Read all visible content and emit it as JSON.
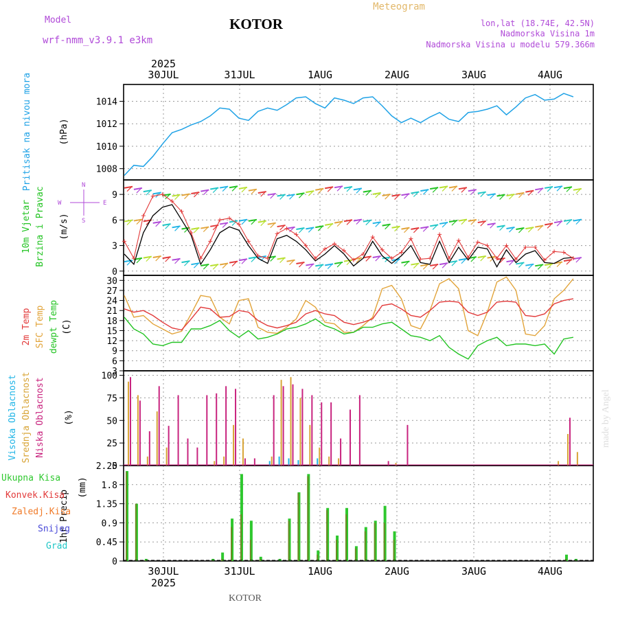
{
  "header": {
    "model_label": "Model",
    "model_name": "wrf-nmm_v3.9.1  e3km",
    "title": "KOTOR",
    "meteogram": "Meteogram",
    "lonlat": "lon,lat (18.74E, 42.5N)",
    "elev": "Nadmorska Visina 1m",
    "model_elev": "Nadmorska Visina u modelu 579.366m",
    "year": "2025",
    "footer_title": "KOTOR",
    "watermark": "made by Angel"
  },
  "colors": {
    "pressure": "#1fa2e6",
    "temp2m": "#e23a3a",
    "sfc": "#e2a43a",
    "dew": "#22c322",
    "high": "#1fb4e6",
    "mid": "#d8a436",
    "low": "#c8237e",
    "precip": "#2ec82e",
    "convect": "#e23a3a",
    "frozen": "#f07a28",
    "snow": "#4a4ad8",
    "hail": "#1fc6c6",
    "purple": "#b04ad8"
  },
  "chart_data": [
    {
      "type": "line",
      "panel": "pressure",
      "title": "Pritisak na nivou mora",
      "ylabel": "(hPa)",
      "ylim": [
        1007,
        1015.5
      ],
      "yticks": [
        "1014",
        "1012",
        "1010",
        "1008"
      ],
      "x_hours_start": 0,
      "step_h": 3,
      "values": [
        1007.4,
        1008.3,
        1008.2,
        1009.1,
        1010.2,
        1011.2,
        1011.5,
        1011.9,
        1012.2,
        1012.7,
        1013.4,
        1013.3,
        1012.5,
        1012.3,
        1013.1,
        1013.4,
        1013.2,
        1013.7,
        1014.3,
        1014.4,
        1013.8,
        1013.4,
        1014.3,
        1014.1,
        1013.8,
        1014.3,
        1014.4,
        1013.6,
        1012.7,
        1012.1,
        1012.5,
        1012.1,
        1012.6,
        1013.0,
        1012.4,
        1012.2,
        1013.0,
        1013.1,
        1013.3,
        1013.6,
        1012.8,
        1013.5,
        1014.3,
        1014.6,
        1014.1,
        1014.2,
        1014.7,
        1014.4
      ],
      "xticks": [
        "30JUL",
        "31JUL",
        "1AUG",
        "2AUG",
        "3AUG",
        "4AUG"
      ]
    },
    {
      "type": "line",
      "panel": "wind",
      "title": "10m Vjetar",
      "subtitle": "Brzina i Pravac",
      "ylabel": "(m/s)",
      "compass": {
        "n": "N",
        "w": "W",
        "e": "E",
        "s": "S"
      },
      "ylim": [
        -0.5,
        10.7
      ],
      "yticks": [
        "9",
        "6",
        "3",
        "0"
      ],
      "series": [
        {
          "name": "speed",
          "values": [
            2.0,
            0.8,
            4.5,
            6.5,
            7.5,
            7.8,
            6.0,
            4.2,
            0.8,
            2.5,
            4.5,
            5.2,
            4.8,
            3.0,
            1.5,
            0.9,
            3.8,
            4.2,
            3.5,
            2.5,
            1.2,
            2.0,
            3.0,
            2.0,
            0.6,
            1.5,
            3.5,
            1.8,
            0.9,
            1.8,
            3.0,
            1.0,
            0.8,
            3.5,
            1.0,
            2.8,
            1.3,
            2.8,
            2.6,
            0.5,
            2.5,
            1.0,
            2.0,
            2.4,
            1.0,
            0.9,
            1.5,
            1.6
          ]
        },
        {
          "name": "gust",
          "values": [
            3.5,
            1.5,
            6.5,
            8.8,
            9.0,
            8.2,
            7.0,
            4.5,
            1.5,
            3.5,
            6.0,
            6.2,
            5.5,
            3.5,
            1.8,
            1.5,
            4.4,
            5.0,
            4.3,
            3.0,
            1.5,
            2.6,
            3.2,
            2.4,
            1.3,
            2.0,
            4.0,
            2.5,
            1.5,
            2.2,
            3.8,
            1.4,
            1.5,
            4.3,
            1.5,
            3.6,
            1.6,
            3.4,
            3.0,
            1.5,
            3.0,
            1.4,
            2.8,
            2.8,
            1.3,
            2.3,
            2.2,
            1.5
          ]
        }
      ]
    },
    {
      "type": "line",
      "panel": "temperature",
      "title": "2m Temp",
      "subtitle": "SFC Temp",
      "subtitle2": "dewpt Temp",
      "ylabel": "(C)",
      "ylim": [
        3,
        31.5
      ],
      "yticks": [
        "30",
        "27",
        "24",
        "21",
        "18",
        "15",
        "12",
        "9",
        "6",
        "3"
      ],
      "series": [
        {
          "name": "2m Temp",
          "values": [
            21.5,
            20.5,
            21.0,
            19.5,
            17.5,
            15.8,
            15.2,
            18.5,
            22.0,
            21.5,
            19.0,
            19.2,
            21.0,
            20.5,
            18.0,
            16.5,
            15.8,
            16.5,
            17.5,
            20.0,
            21.0,
            20.0,
            19.5,
            17.5,
            16.8,
            17.5,
            18.5,
            22.5,
            23.0,
            21.5,
            19.5,
            19.0,
            21.0,
            23.5,
            23.8,
            23.5,
            20.5,
            19.5,
            20.5,
            23.5,
            23.8,
            23.5,
            19.5,
            19.2,
            20.0,
            23.0,
            24.0,
            24.5
          ]
        },
        {
          "name": "SFC Temp",
          "values": [
            25.5,
            19.0,
            19.5,
            17.0,
            15.5,
            14.0,
            14.8,
            20.0,
            25.5,
            25.0,
            19.0,
            17.0,
            24.0,
            24.5,
            16.0,
            14.5,
            14.2,
            16.0,
            18.5,
            24.0,
            22.0,
            17.5,
            17.0,
            14.5,
            14.5,
            16.5,
            19.0,
            27.5,
            28.5,
            24.5,
            16.5,
            15.5,
            21.0,
            29.0,
            30.5,
            27.5,
            15.0,
            13.5,
            20.5,
            29.5,
            31.0,
            27.0,
            14.0,
            13.5,
            16.5,
            24.5,
            27.0,
            30.5
          ]
        },
        {
          "name": "dewpt Temp",
          "values": [
            19.0,
            15.5,
            14.0,
            11.0,
            10.5,
            11.5,
            11.5,
            15.5,
            15.5,
            16.5,
            18.0,
            15.0,
            13.0,
            15.0,
            12.5,
            13.0,
            14.0,
            15.5,
            16.0,
            17.0,
            18.5,
            16.5,
            15.5,
            14.0,
            14.5,
            16.0,
            16.0,
            17.0,
            17.5,
            15.5,
            13.5,
            13.0,
            12.0,
            13.5,
            10.0,
            8.0,
            6.5,
            10.5,
            12.0,
            13.0,
            10.5,
            11.0,
            11.0,
            10.5,
            11.0,
            8.0,
            12.5,
            13.0
          ]
        }
      ]
    },
    {
      "type": "bar",
      "panel": "clouds",
      "title": "Visoka Oblacnost",
      "subtitle": "Srednja Oblacnost",
      "subtitle2": "Niska Oblacnost",
      "ylabel": "(%)",
      "ylim": [
        0,
        105
      ],
      "yticks": [
        "100",
        "75",
        "50",
        "25",
        "0"
      ],
      "series": [
        {
          "name": "Visoka Oblacnost",
          "values": [
            0,
            0,
            0,
            0,
            0,
            0,
            0,
            0,
            0,
            0,
            0,
            0,
            0,
            0,
            0,
            5,
            10,
            8,
            6,
            0,
            8,
            0,
            0,
            0,
            0,
            0,
            0,
            0,
            0,
            0,
            0,
            0,
            0,
            0,
            0,
            0,
            0,
            0,
            0,
            0,
            0,
            0,
            0,
            0,
            0,
            0,
            0,
            0
          ]
        },
        {
          "name": "Srednja Oblacnost",
          "values": [
            93,
            78,
            10,
            60,
            20,
            0,
            0,
            0,
            0,
            5,
            10,
            45,
            30,
            0,
            0,
            10,
            95,
            98,
            75,
            45,
            20,
            10,
            8,
            0,
            0,
            0,
            0,
            0,
            3,
            0,
            0,
            0,
            0,
            0,
            0,
            0,
            0,
            0,
            0,
            0,
            0,
            0,
            0,
            0,
            0,
            5,
            35,
            15
          ]
        },
        {
          "name": "Niska Oblacnost",
          "values": [
            98,
            72,
            38,
            88,
            44,
            78,
            30,
            20,
            78,
            80,
            88,
            85,
            8,
            8,
            0,
            78,
            88,
            90,
            85,
            78,
            70,
            70,
            30,
            62,
            78,
            0,
            0,
            5,
            0,
            45,
            0,
            0,
            0,
            0,
            0,
            0,
            0,
            0,
            0,
            0,
            0,
            0,
            0,
            0,
            0,
            0,
            53,
            0
          ]
        }
      ]
    },
    {
      "type": "bar",
      "panel": "precip",
      "title": "1hr Precip",
      "ylabel": "(mm)",
      "ylim": [
        0,
        2.25
      ],
      "yticks": [
        "2.25",
        "1.8",
        "1.35",
        "0.9",
        "0.45",
        "0"
      ],
      "xticks": [
        "30JUL",
        "31JUL",
        "1AUG",
        "2AUG",
        "3AUG",
        "4AUG"
      ],
      "legend": [
        "Ukupna  Kisa",
        "Konvek.Kisa",
        "Zaledj.Kisa",
        "Snijeg",
        "Grad"
      ],
      "series": [
        {
          "name": "Ukupna  Kisa",
          "values": [
            2.12,
            1.35,
            0.05,
            0,
            0,
            0,
            0,
            0,
            0,
            0.05,
            0.2,
            1.0,
            2.05,
            0.95,
            0.1,
            0,
            0.05,
            1.0,
            1.62,
            2.05,
            0.25,
            1.25,
            0.6,
            1.25,
            0.35,
            0.8,
            0.95,
            1.3,
            0.7,
            0,
            0,
            0,
            0,
            0,
            0,
            0,
            0,
            0,
            0,
            0,
            0,
            0,
            0,
            0,
            0,
            0,
            0.15,
            0.05
          ]
        },
        {
          "name": "Konvek.Kisa",
          "values": [
            2.1,
            1.35,
            0.02,
            0,
            0,
            0,
            0,
            0,
            0,
            0.02,
            0.05,
            0.8,
            1.1,
            0.5,
            0.05,
            0,
            0,
            0.95,
            1.6,
            2.0,
            0.15,
            1.2,
            0.5,
            1.1,
            0.3,
            0.7,
            0.9,
            0.9,
            0.5,
            0,
            0,
            0,
            0,
            0,
            0,
            0,
            0,
            0,
            0,
            0,
            0,
            0,
            0,
            0,
            0,
            0,
            0.05,
            0.02
          ]
        }
      ]
    }
  ]
}
